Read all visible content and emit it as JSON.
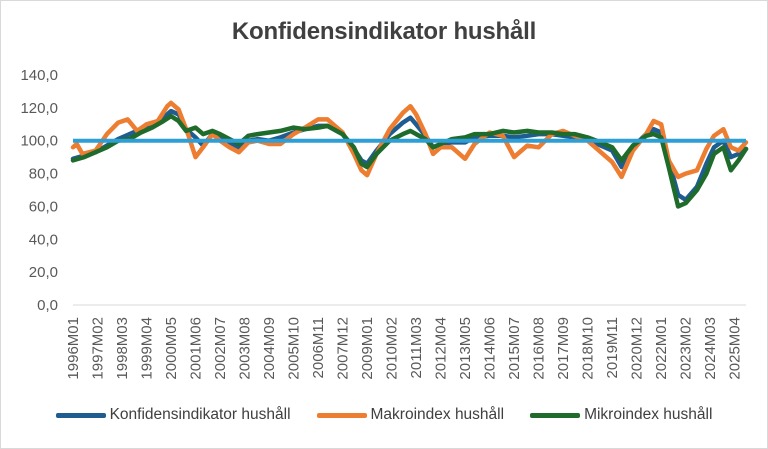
{
  "chart_data": {
    "type": "line",
    "title": "Konfidensindikator hushåll",
    "xlabel": "",
    "ylabel": "",
    "ylim": [
      0,
      140
    ],
    "yticks": [
      "0,0",
      "20,0",
      "40,0",
      "60,0",
      "80,0",
      "100,0",
      "120,0",
      "140,0"
    ],
    "grid": false,
    "legend_position": "bottom",
    "x_tick_labels": [
      "1996M01",
      "1997M02",
      "1998M03",
      "1999M04",
      "2000M05",
      "2001M06",
      "2002M07",
      "2003M08",
      "2004M09",
      "2005M10",
      "2006M11",
      "2007M12",
      "2009M01",
      "2010M02",
      "2011M03",
      "2012M04",
      "2013M05",
      "2014M06",
      "2015M07",
      "2016M08",
      "2017M09",
      "2018M10",
      "2019M11",
      "2020M12",
      "2022M01",
      "2023M02",
      "2024M03",
      "2025M04"
    ],
    "reference_line": {
      "y": 100,
      "color": "#2e9fd6"
    },
    "series": [
      {
        "name": "Konfidensindikator hushåll",
        "color": "#1f5c8f",
        "points": [
          [
            "1996M01",
            89
          ],
          [
            "1996M07",
            91
          ],
          [
            "1997M01",
            93
          ],
          [
            "1997M07",
            97
          ],
          [
            "1998M01",
            101
          ],
          [
            "1998M07",
            104
          ],
          [
            "1999M01",
            107
          ],
          [
            "1999M07",
            109
          ],
          [
            "2000M01",
            114
          ],
          [
            "2000M05",
            118
          ],
          [
            "2000M09",
            116
          ],
          [
            "2001M01",
            107
          ],
          [
            "2001M06",
            102
          ],
          [
            "2001M10",
            97
          ],
          [
            "2002M03",
            104
          ],
          [
            "2002M07",
            103
          ],
          [
            "2002M12",
            99
          ],
          [
            "2003M05",
            96
          ],
          [
            "2003M10",
            100
          ],
          [
            "2004M03",
            101
          ],
          [
            "2004M09",
            100
          ],
          [
            "2005M03",
            102
          ],
          [
            "2005M10",
            105
          ],
          [
            "2006M04",
            107
          ],
          [
            "2006M11",
            109
          ],
          [
            "2007M04",
            109
          ],
          [
            "2007M12",
            104
          ],
          [
            "2008M06",
            95
          ],
          [
            "2008M10",
            88
          ],
          [
            "2009M01",
            86
          ],
          [
            "2009M06",
            94
          ],
          [
            "2010M01",
            104
          ],
          [
            "2010M08",
            111
          ],
          [
            "2010M12",
            114
          ],
          [
            "2011M03",
            110
          ],
          [
            "2011M08",
            103
          ],
          [
            "2011M12",
            96
          ],
          [
            "2012M04",
            98
          ],
          [
            "2012M10",
            99
          ],
          [
            "2013M05",
            99
          ],
          [
            "2013M10",
            102
          ],
          [
            "2014M06",
            103
          ],
          [
            "2015M01",
            103
          ],
          [
            "2015M07",
            102
          ],
          [
            "2016M02",
            103
          ],
          [
            "2016M08",
            104
          ],
          [
            "2017M03",
            104
          ],
          [
            "2017M09",
            103
          ],
          [
            "2018M03",
            102
          ],
          [
            "2018M10",
            101
          ],
          [
            "2019M05",
            97
          ],
          [
            "2019M11",
            94
          ],
          [
            "2020M04",
            84
          ],
          [
            "2020M10",
            96
          ],
          [
            "2021M05",
            104
          ],
          [
            "2021M09",
            107
          ],
          [
            "2022M01",
            105
          ],
          [
            "2022M05",
            88
          ],
          [
            "2022M10",
            67
          ],
          [
            "2023M02",
            64
          ],
          [
            "2023M08",
            72
          ],
          [
            "2024M01",
            86
          ],
          [
            "2024M05",
            96
          ],
          [
            "2024M10",
            100
          ],
          [
            "2025M02",
            90
          ],
          [
            "2025M06",
            92
          ],
          [
            "2025M10",
            95
          ]
        ]
      },
      {
        "name": "Makroindex hushåll",
        "color": "#ed7d31",
        "points": [
          [
            "1996M01",
            96
          ],
          [
            "1996M03",
            98
          ],
          [
            "1996M06",
            92
          ],
          [
            "1997M01",
            94
          ],
          [
            "1997M07",
            104
          ],
          [
            "1998M01",
            111
          ],
          [
            "1998M06",
            113
          ],
          [
            "1998M11",
            106
          ],
          [
            "1999M04",
            110
          ],
          [
            "1999M10",
            112
          ],
          [
            "2000M03",
            121
          ],
          [
            "2000M05",
            123
          ],
          [
            "2000M09",
            119
          ],
          [
            "2001M02",
            104
          ],
          [
            "2001M06",
            90
          ],
          [
            "2001M10",
            96
          ],
          [
            "2002M03",
            104
          ],
          [
            "2002M07",
            100
          ],
          [
            "2002M12",
            96
          ],
          [
            "2003M05",
            93
          ],
          [
            "2003M10",
            99
          ],
          [
            "2004M03",
            100
          ],
          [
            "2004M09",
            98
          ],
          [
            "2005M03",
            98
          ],
          [
            "2005M10",
            104
          ],
          [
            "2006M04",
            108
          ],
          [
            "2006M11",
            113
          ],
          [
            "2007M04",
            113
          ],
          [
            "2007M12",
            105
          ],
          [
            "2008M06",
            92
          ],
          [
            "2008M10",
            82
          ],
          [
            "2009M01",
            79
          ],
          [
            "2009M06",
            92
          ],
          [
            "2010M01",
            107
          ],
          [
            "2010M08",
            117
          ],
          [
            "2010M12",
            121
          ],
          [
            "2011M03",
            116
          ],
          [
            "2011M08",
            104
          ],
          [
            "2011M12",
            92
          ],
          [
            "2012M04",
            96
          ],
          [
            "2012M10",
            96
          ],
          [
            "2013M05",
            89
          ],
          [
            "2013M10",
            98
          ],
          [
            "2014M06",
            105
          ],
          [
            "2015M01",
            103
          ],
          [
            "2015M07",
            90
          ],
          [
            "2016M02",
            97
          ],
          [
            "2016M08",
            96
          ],
          [
            "2017M03",
            104
          ],
          [
            "2017M09",
            106
          ],
          [
            "2018M03",
            103
          ],
          [
            "2018M10",
            100
          ],
          [
            "2019M05",
            93
          ],
          [
            "2019M11",
            87
          ],
          [
            "2020M04",
            78
          ],
          [
            "2020M10",
            94
          ],
          [
            "2021M05",
            104
          ],
          [
            "2021M09",
            112
          ],
          [
            "2022M01",
            110
          ],
          [
            "2022M05",
            88
          ],
          [
            "2022M10",
            78
          ],
          [
            "2023M02",
            80
          ],
          [
            "2023M08",
            82
          ],
          [
            "2024M01",
            95
          ],
          [
            "2024M05",
            103
          ],
          [
            "2024M10",
            107
          ],
          [
            "2025M02",
            96
          ],
          [
            "2025M06",
            94
          ],
          [
            "2025M10",
            99
          ]
        ]
      },
      {
        "name": "Mikroindex hushåll",
        "color": "#1e6b2b",
        "points": [
          [
            "1996M01",
            88
          ],
          [
            "1996M07",
            90
          ],
          [
            "1997M01",
            93
          ],
          [
            "1997M07",
            96
          ],
          [
            "1998M01",
            100
          ],
          [
            "1998M07",
            101
          ],
          [
            "1999M01",
            105
          ],
          [
            "1999M07",
            108
          ],
          [
            "2000M01",
            112
          ],
          [
            "2000M05",
            115
          ],
          [
            "2000M09",
            112
          ],
          [
            "2001M01",
            106
          ],
          [
            "2001M06",
            108
          ],
          [
            "2001M10",
            104
          ],
          [
            "2002M03",
            106
          ],
          [
            "2002M07",
            104
          ],
          [
            "2002M12",
            101
          ],
          [
            "2003M05",
            98
          ],
          [
            "2003M10",
            103
          ],
          [
            "2004M03",
            104
          ],
          [
            "2004M09",
            105
          ],
          [
            "2005M03",
            106
          ],
          [
            "2005M10",
            108
          ],
          [
            "2006M04",
            107
          ],
          [
            "2006M11",
            108
          ],
          [
            "2007M04",
            109
          ],
          [
            "2007M12",
            104
          ],
          [
            "2008M06",
            96
          ],
          [
            "2008M10",
            86
          ],
          [
            "2009M01",
            84
          ],
          [
            "2009M06",
            92
          ],
          [
            "2010M01",
            100
          ],
          [
            "2010M08",
            104
          ],
          [
            "2010M12",
            106
          ],
          [
            "2011M03",
            104
          ],
          [
            "2011M08",
            101
          ],
          [
            "2011M12",
            96
          ],
          [
            "2012M04",
            98
          ],
          [
            "2012M10",
            101
          ],
          [
            "2013M05",
            102
          ],
          [
            "2013M10",
            104
          ],
          [
            "2014M06",
            104
          ],
          [
            "2015M01",
            106
          ],
          [
            "2015M07",
            105
          ],
          [
            "2016M02",
            106
          ],
          [
            "2016M08",
            105
          ],
          [
            "2017M03",
            105
          ],
          [
            "2017M09",
            104
          ],
          [
            "2018M03",
            104
          ],
          [
            "2018M10",
            102
          ],
          [
            "2019M05",
            99
          ],
          [
            "2019M11",
            96
          ],
          [
            "2020M04",
            88
          ],
          [
            "2020M10",
            97
          ],
          [
            "2021M05",
            103
          ],
          [
            "2021M09",
            104
          ],
          [
            "2022M01",
            102
          ],
          [
            "2022M05",
            84
          ],
          [
            "2022M10",
            60
          ],
          [
            "2023M02",
            62
          ],
          [
            "2023M08",
            70
          ],
          [
            "2024M01",
            80
          ],
          [
            "2024M05",
            92
          ],
          [
            "2024M10",
            96
          ],
          [
            "2025M02",
            82
          ],
          [
            "2025M06",
            88
          ],
          [
            "2025M10",
            95
          ]
        ]
      }
    ]
  }
}
